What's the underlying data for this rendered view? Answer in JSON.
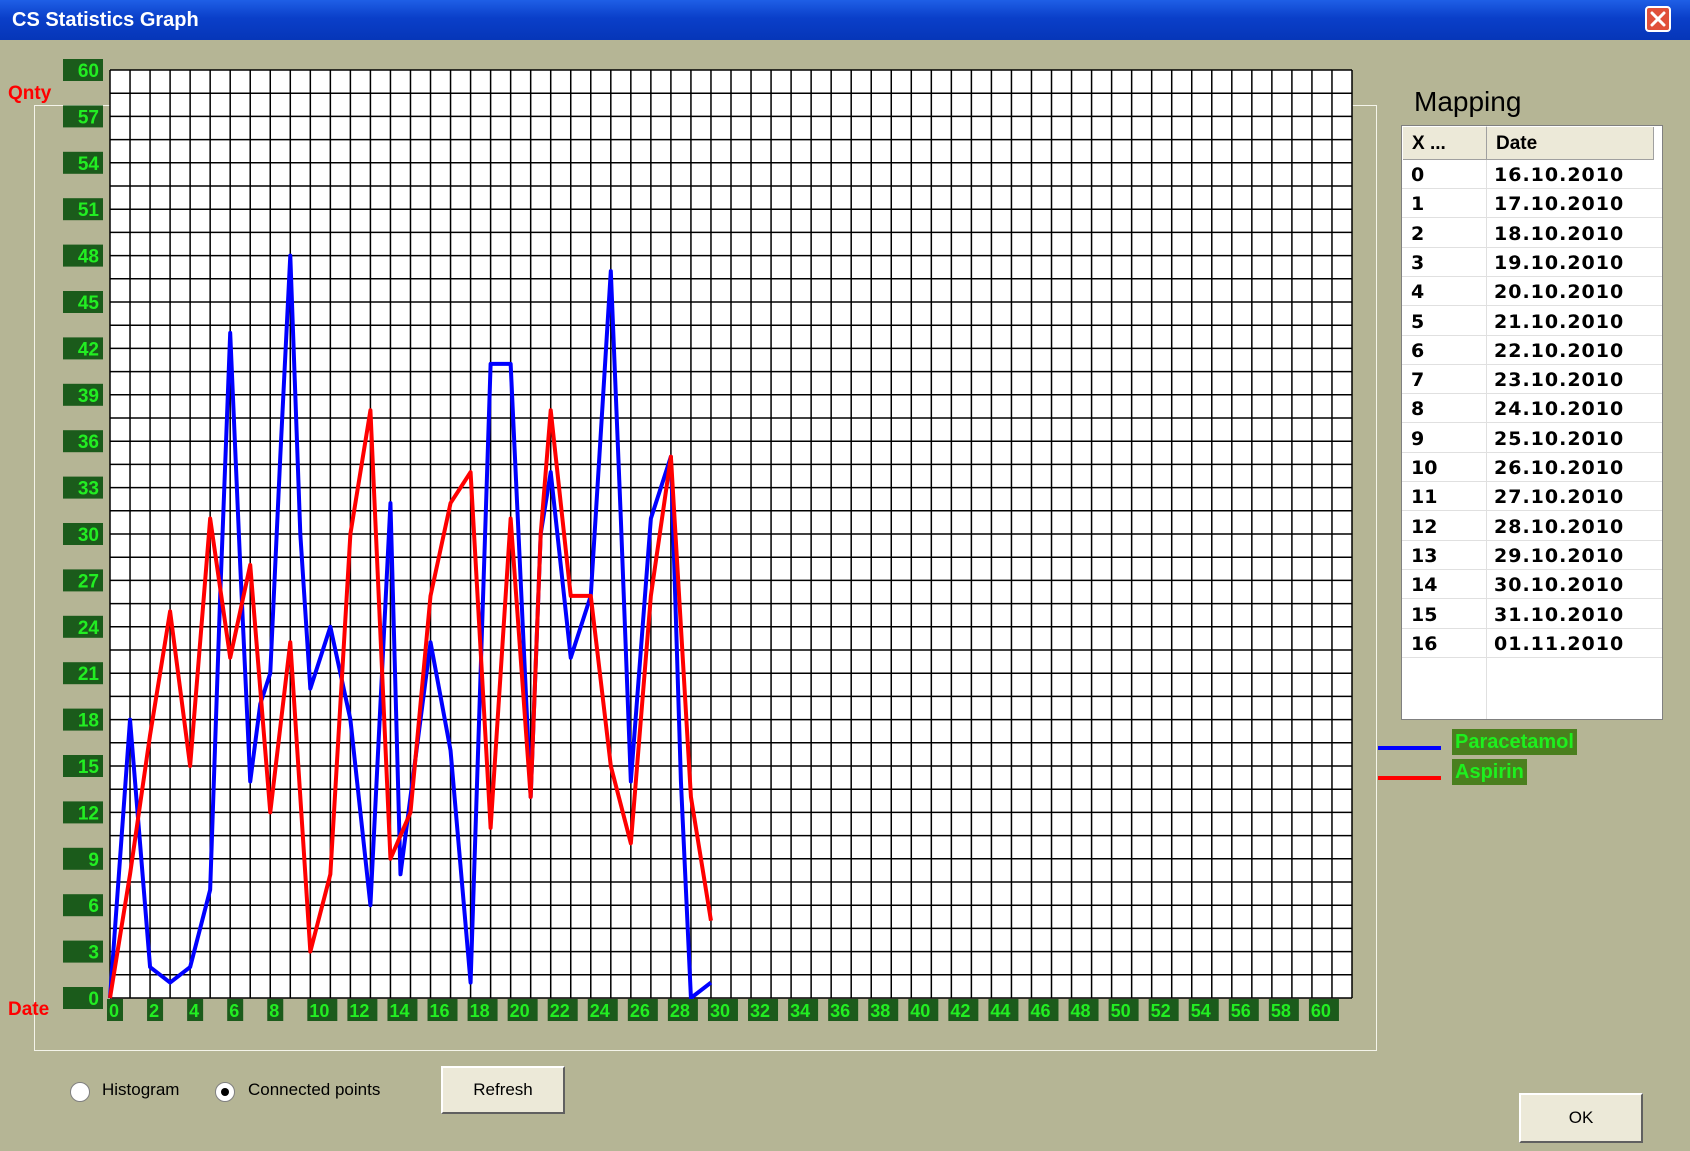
{
  "window": {
    "title": "CS Statistics Graph"
  },
  "chart_data": {
    "type": "line",
    "xlabel": "Date",
    "ylabel": "Qnty",
    "xlim": [
      0,
      62
    ],
    "ylim": [
      0,
      60
    ],
    "x_ticks": [
      "0",
      "2",
      "4",
      "6",
      "8",
      "10",
      "12",
      "14",
      "16",
      "18",
      "20",
      "22",
      "24",
      "26",
      "28",
      "30",
      "32",
      "34",
      "36",
      "38",
      "40",
      "42",
      "44",
      "46",
      "48",
      "50",
      "52",
      "54",
      "56",
      "58",
      "60"
    ],
    "y_ticks": [
      "0",
      "3",
      "6",
      "9",
      "12",
      "15",
      "18",
      "21",
      "24",
      "27",
      "30",
      "33",
      "36",
      "39",
      "42",
      "45",
      "48",
      "51",
      "54",
      "57",
      "60"
    ],
    "grid": true,
    "series": [
      {
        "name": "Paracetamol",
        "color": "#0000ff",
        "x": [
          0,
          1,
          1.5,
          2,
          3,
          4,
          5,
          5.5,
          6,
          6.5,
          7,
          7.5,
          8,
          8.5,
          9,
          9.5,
          10,
          11,
          12,
          13,
          14,
          14.5,
          15,
          16,
          17,
          18,
          19,
          20,
          21,
          21.5,
          22,
          23,
          24,
          25,
          25.5,
          26,
          27,
          28,
          28.5,
          29,
          30
        ],
        "y": [
          0,
          18,
          10,
          2,
          1,
          2,
          7,
          26,
          43,
          28,
          14,
          19,
          21,
          35,
          48,
          30,
          20,
          24,
          18,
          6,
          32,
          8,
          13,
          23,
          16,
          1,
          41,
          41,
          13,
          30,
          34,
          22,
          26,
          47,
          31,
          14,
          31,
          35,
          14,
          0,
          1
        ]
      },
      {
        "name": "Aspirin",
        "color": "#ff0000",
        "x": [
          0,
          1,
          2,
          3,
          4,
          5,
          6,
          7,
          8,
          9,
          10,
          11,
          12,
          13,
          14,
          15,
          16,
          17,
          18,
          19,
          20,
          21,
          21.5,
          22,
          23,
          24,
          25,
          26,
          27,
          28,
          29,
          30
        ],
        "y": [
          0,
          8,
          17,
          25,
          15,
          31,
          22,
          28,
          12,
          23,
          3,
          8,
          30,
          38,
          9,
          12,
          26,
          32,
          34,
          11,
          31,
          13,
          30,
          38,
          26,
          26,
          15,
          10,
          26,
          35,
          13,
          5
        ]
      }
    ]
  },
  "mapping": {
    "title": "Mapping",
    "columns": [
      "X ...",
      "Date"
    ],
    "rows": [
      [
        "0",
        "16.10.2010"
      ],
      [
        "1",
        "17.10.2010"
      ],
      [
        "2",
        "18.10.2010"
      ],
      [
        "3",
        "19.10.2010"
      ],
      [
        "4",
        "20.10.2010"
      ],
      [
        "5",
        "21.10.2010"
      ],
      [
        "6",
        "22.10.2010"
      ],
      [
        "7",
        "23.10.2010"
      ],
      [
        "8",
        "24.10.2010"
      ],
      [
        "9",
        "25.10.2010"
      ],
      [
        "10",
        "26.10.2010"
      ],
      [
        "11",
        "27.10.2010"
      ],
      [
        "12",
        "28.10.2010"
      ],
      [
        "13",
        "29.10.2010"
      ],
      [
        "14",
        "30.10.2010"
      ],
      [
        "15",
        "31.10.2010"
      ],
      [
        "16",
        "01.11.2010"
      ]
    ]
  },
  "legend": [
    {
      "label": "Paracetamol",
      "color": "#0000ff"
    },
    {
      "label": "Aspirin",
      "color": "#ff0000"
    }
  ],
  "controls": {
    "histogram_label": "Histogram",
    "connected_label": "Connected points",
    "selected": "connected",
    "refresh_label": "Refresh",
    "ok_label": "OK"
  }
}
